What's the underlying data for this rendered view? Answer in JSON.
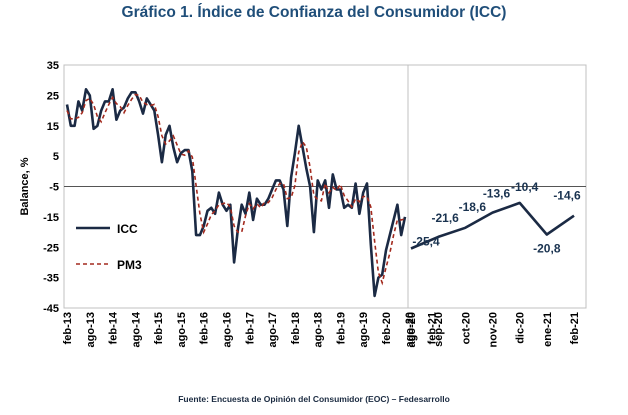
{
  "title": "Gráfico 1. Índice de Confianza del Consumidor (ICC)",
  "source": "Fuente: Encuesta de Opinión del Consumidor (EOC) – Fedesarrollo",
  "colors": {
    "icc": "#1b2a44",
    "pm3": "#a32a1e",
    "grid": "#c0c0c0"
  },
  "chart_data": [
    {
      "type": "line",
      "ylabel": "Balance, %",
      "ylim": [
        -45,
        35
      ],
      "yticks": [
        35,
        25,
        15,
        5,
        -5,
        -15,
        -25,
        -35,
        -45
      ],
      "xtick_labels": [
        "feb-13",
        "ago-13",
        "feb-14",
        "ago-14",
        "feb-15",
        "ago-15",
        "feb-16",
        "ago-16",
        "feb-17",
        "ago-17",
        "feb-18",
        "ago-18",
        "feb-19",
        "ago-19",
        "feb-20",
        "ago-20",
        "feb-21"
      ],
      "legend": [
        "ICC",
        "PM3"
      ],
      "legend_position": "bottom-left",
      "series": [
        {
          "name": "ICC",
          "values": [
            22,
            15,
            15,
            23,
            20,
            27,
            25,
            14,
            15,
            20,
            23,
            23,
            27,
            17,
            20,
            21,
            24,
            26,
            26,
            23,
            19,
            24,
            22,
            20,
            12,
            3,
            12,
            15,
            8,
            3,
            6,
            7,
            7,
            0,
            -21,
            -21,
            -18,
            -13,
            -12,
            -14,
            -7,
            -11,
            -13,
            -11,
            -30,
            -19,
            -11,
            -14,
            -7,
            -16,
            -9,
            -11,
            -11,
            -9,
            -6,
            -3,
            -3,
            -6,
            -18,
            -2,
            6,
            15,
            8,
            1,
            -5,
            -20,
            -3,
            -6,
            -3,
            -12,
            -1,
            -6,
            -6,
            -12,
            -11,
            -12,
            -4,
            -14,
            -7,
            -4,
            -24,
            -41,
            -35,
            -34,
            -26,
            -21,
            -16,
            -11,
            -21,
            -15
          ]
        },
        {
          "name": "PM3",
          "values": [
            20,
            17.3,
            17.3,
            17.7,
            19.3,
            23.3,
            24,
            22,
            18,
            16.3,
            19.3,
            22,
            24.3,
            22.3,
            21.3,
            19.3,
            21.7,
            23.7,
            25.3,
            25,
            22.7,
            22,
            21.7,
            22,
            18,
            11.7,
            9,
            10,
            11.7,
            8.7,
            5.7,
            5.3,
            6.7,
            4.7,
            -4.7,
            -14,
            -20,
            -17.3,
            -14.3,
            -13,
            -11,
            -10.7,
            -10.3,
            -11.7,
            -18,
            -20,
            -20,
            -14.7,
            -10.7,
            -12.3,
            -10.7,
            -12,
            -10.3,
            -10.3,
            -8.7,
            -6,
            -4,
            -4,
            -9,
            -8.7,
            -4.7,
            6.3,
            9.7,
            8,
            1.3,
            -8,
            -9.3,
            -9.7,
            -4,
            -7,
            -5.3,
            -6.3,
            -4.3,
            -8,
            -9.7,
            -11.7,
            -9,
            -10,
            -8.3,
            -8.3,
            -11.7,
            -23,
            -33.3,
            -36.7,
            -31.7,
            -27,
            -21,
            -16,
            -16,
            -15.7
          ]
        }
      ]
    },
    {
      "type": "line",
      "categories": [
        "ago-20",
        "sep-20",
        "oct-20",
        "nov-20",
        "dic-20",
        "ene-21",
        "feb-21"
      ],
      "series": [
        {
          "name": "ICC",
          "values": [
            -25.4,
            -21.6,
            -18.6,
            -13.6,
            -10.4,
            -20.8,
            -14.6
          ]
        }
      ],
      "data_labels": [
        "-25,4",
        "-21,6",
        "-18,6",
        "-13,6",
        "-10,4",
        "-20,8",
        "-14,6"
      ]
    }
  ]
}
